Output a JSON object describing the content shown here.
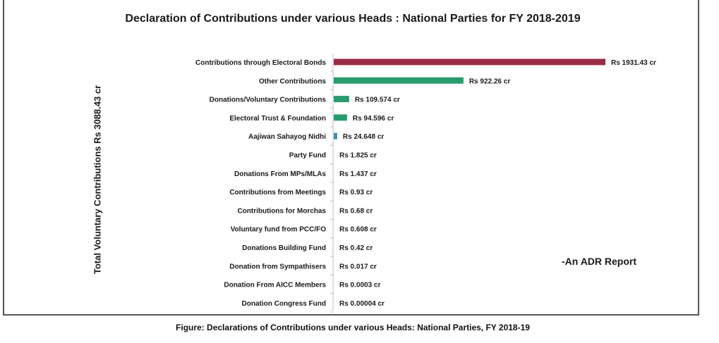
{
  "chart_data": {
    "type": "bar",
    "orientation": "horizontal",
    "title": "Declaration of Contributions under various Heads : National Parties for FY 2018-2019",
    "ylabel": "Total Voluntary Contributions Rs 3088.43 cr",
    "categories": [
      "Contributions through Electoral Bonds",
      "Other Contributions",
      "Donations/Voluntary Contributions",
      "Electoral Trust & Foundation",
      "Aajiwan Sahayog Nidhi",
      "Party Fund",
      "Donations From MPs/MLAs",
      "Contributions from  Meetings",
      "Contributions for Morchas",
      "Voluntary fund from PCC/FO",
      "Donations Building Fund",
      "Donation from Sympathisers",
      "Donation From AICC Members",
      "Donation Congress Fund"
    ],
    "values": [
      1931.43,
      922.26,
      109.574,
      94.596,
      24.648,
      1.825,
      1.437,
      0.93,
      0.68,
      0.608,
      0.42,
      0.017,
      0.0003,
      4e-05
    ],
    "value_labels": [
      "Rs 1931.43 cr",
      "Rs 922.26 cr",
      "Rs 109.574 cr",
      "Rs 94.596 cr",
      "Rs 24.648 cr",
      "Rs 1.825 cr",
      "Rs 1.437 cr",
      "Rs 0.93 cr",
      "Rs 0.68 cr",
      "Rs 0.608 cr",
      "Rs 0.42 cr",
      "Rs 0.017 cr",
      "Rs 0.0003 cr",
      "Rs 0.00004 cr"
    ],
    "bar_colors": [
      "#9b2d46",
      "#2a9a6f",
      "#2a9a6f",
      "#2a9a6f",
      "#3f8fb3",
      "#2a9a6f",
      "#2a9a6f",
      "#2a9a6f",
      "#2a9a6f",
      "#2a9a6f",
      "#2a9a6f",
      "#2a9a6f",
      "#2a9a6f",
      "#2a9a6f"
    ],
    "xlim": [
      0,
      1931.43
    ],
    "grid": false
  },
  "source_note": "-An ADR Report",
  "caption": "Figure: Declarations of Contributions under various Heads: National Parties, FY 2018-19"
}
